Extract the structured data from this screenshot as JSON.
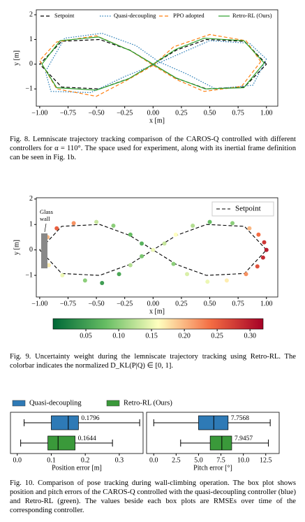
{
  "chart_data": [
    {
      "type": "line",
      "xlabel": "x [m]",
      "ylabel": "y [m]",
      "xlim": [
        -1.03,
        1.1
      ],
      "ylim": [
        -1.7,
        2.2
      ],
      "xticks": [
        {
          "value": -1,
          "label": "−1.00"
        },
        {
          "value": -0.75,
          "label": "−0.75"
        },
        {
          "value": -0.5,
          "label": "−0.50"
        },
        {
          "value": -0.25,
          "label": "−0.25"
        },
        {
          "value": 0,
          "label": "0.00"
        },
        {
          "value": 0.25,
          "label": "0.25"
        },
        {
          "value": 0.5,
          "label": "0.50"
        },
        {
          "value": 0.75,
          "label": "0.75"
        },
        {
          "value": 1,
          "label": "1.00"
        }
      ],
      "yticks": [
        {
          "value": -1,
          "label": "−1"
        },
        0,
        1,
        2
      ],
      "series": [
        {
          "name": "Setpoint",
          "color": "#000000",
          "linestyle": "dashed",
          "x": [
            1,
            0.806,
            0.471,
            0.207,
            0,
            -0.207,
            -0.471,
            -0.806,
            -1,
            -0.806,
            -0.471,
            -0.207,
            0,
            0.207,
            0.471,
            0.806,
            1
          ],
          "y": [
            0,
            0.926,
            1,
            0.572,
            0,
            -0.572,
            -1,
            -0.926,
            0,
            0.926,
            1,
            0.572,
            0,
            -0.572,
            -1,
            -0.926,
            0
          ]
        },
        {
          "name": "Quasi-decoupling",
          "color": "#1f77b4",
          "linestyle": "dotted",
          "x": [
            1.0,
            0.85,
            0.5,
            0.25,
            0.05,
            -0.25,
            -0.55,
            -0.9,
            -0.95,
            -0.78,
            -0.45,
            -0.15,
            0.05,
            0.3,
            0.55,
            0.88,
            1.0
          ],
          "y": [
            0.2,
            0.85,
            0.95,
            0.45,
            0.05,
            -0.5,
            -1.15,
            -1.1,
            -0.3,
            1.05,
            1.25,
            0.75,
            0.1,
            -0.4,
            -1.0,
            -0.85,
            0.2
          ]
        },
        {
          "name": "PPO adopted",
          "color": "#ff7f0e",
          "linestyle": "dashed",
          "x": [
            0.95,
            0.82,
            0.5,
            0.18,
            0,
            -0.25,
            -0.5,
            -0.85,
            -1.0,
            -0.85,
            -0.5,
            -0.2,
            0.02,
            0.22,
            0.45,
            0.78,
            0.95
          ],
          "y": [
            0.1,
            0.95,
            1.2,
            0.7,
            -0.05,
            -0.7,
            -1.3,
            -1.0,
            0.15,
            0.9,
            1.15,
            0.55,
            -0.1,
            -0.65,
            -1.1,
            -0.9,
            0.1
          ]
        },
        {
          "name": "Retro-RL (Ours)",
          "color": "#2ca02c",
          "linestyle": "solid",
          "x": [
            0.98,
            0.8,
            0.45,
            0.2,
            0,
            -0.22,
            -0.5,
            -0.85,
            -0.98,
            -0.82,
            -0.48,
            -0.2,
            0,
            0.2,
            0.46,
            0.8,
            0.98
          ],
          "y": [
            0.05,
            0.95,
            1.05,
            0.6,
            0,
            -0.6,
            -1.05,
            -0.95,
            0,
            0.95,
            1.1,
            0.55,
            0,
            -0.55,
            -1.0,
            -0.95,
            0.05
          ]
        }
      ]
    },
    {
      "type": "scatter",
      "xlabel": "x [m]",
      "ylabel": "y [m]",
      "xlim": [
        -1.03,
        1.1
      ],
      "ylim": [
        -1.85,
        2.05
      ],
      "xticks": [
        {
          "value": -1,
          "label": "−1.00"
        },
        {
          "value": -0.75,
          "label": "−0.75"
        },
        {
          "value": -0.5,
          "label": "−0.50"
        },
        {
          "value": -0.25,
          "label": "−0.25"
        },
        {
          "value": 0,
          "label": "0.00"
        },
        {
          "value": 0.25,
          "label": "0.25"
        },
        {
          "value": 0.5,
          "label": "0.50"
        },
        {
          "value": 0.75,
          "label": "0.75"
        },
        {
          "value": 1,
          "label": "1.00"
        }
      ],
      "yticks": [
        {
          "value": -1,
          "label": "−1"
        },
        0,
        1,
        2
      ],
      "annotation": "Glass wall",
      "setpoint": {
        "name": "Setpoint",
        "color": "#000000",
        "x": [
          1,
          0.806,
          0.471,
          0.207,
          0,
          -0.207,
          -0.471,
          -0.806,
          -1,
          -0.806,
          -0.471,
          -0.207,
          0,
          0.207,
          0.471,
          0.806,
          1
        ],
        "y": [
          0,
          0.926,
          1,
          0.572,
          0,
          -0.572,
          -1,
          -0.926,
          0,
          0.926,
          1,
          0.572,
          0,
          -0.572,
          -1,
          -0.926,
          0
        ]
      },
      "x": [
        1.0,
        0.98,
        0.97,
        0.93,
        0.92,
        0.85,
        0.82,
        0.7,
        0.65,
        0.5,
        0.48,
        0.35,
        0.3,
        0.2,
        0.18,
        0.1,
        0.0,
        -0.1,
        -0.2,
        -0.3,
        -0.45,
        -0.6,
        -0.8,
        -0.92,
        -0.97,
        -0.93,
        -0.85,
        -0.7,
        -0.5,
        -0.35,
        -0.2,
        -0.1
      ],
      "y": [
        0.0,
        0.3,
        -0.3,
        0.6,
        -0.65,
        0.85,
        -0.95,
        1.05,
        -1.2,
        1.1,
        -1.25,
        0.95,
        -0.95,
        0.6,
        -0.55,
        0.25,
        0.0,
        -0.25,
        -0.6,
        -0.95,
        -1.3,
        -1.2,
        -1.0,
        -0.6,
        0.0,
        0.5,
        0.85,
        1.05,
        1.1,
        0.95,
        0.6,
        0.25
      ],
      "values": [
        0.3,
        0.28,
        0.29,
        0.24,
        0.26,
        0.2,
        0.22,
        0.1,
        0.17,
        0.08,
        0.15,
        0.12,
        0.14,
        0.16,
        0.1,
        0.13,
        0.15,
        0.09,
        0.12,
        0.06,
        0.05,
        0.1,
        0.15,
        0.17,
        0.16,
        0.2,
        0.25,
        0.22,
        0.13,
        0.1,
        0.08,
        0.07
      ],
      "colormap": "RdYlGn_r",
      "clim": [
        0.0,
        0.32
      ],
      "cticks": [
        0.05,
        {
          "value": 0.1,
          "label": "0.10"
        },
        0.15,
        {
          "value": 0.2,
          "label": "0.20"
        },
        0.25,
        {
          "value": 0.3,
          "label": "0.30"
        }
      ]
    },
    {
      "type": "box",
      "legend": [
        {
          "name": "Quasi-decoupling",
          "color": "#2e7ab6"
        },
        {
          "name": "Retro-RL (Ours)",
          "color": "#3a993a"
        }
      ],
      "panels": [
        {
          "xlabel": "Position error [m]",
          "xlim": [
            -0.02,
            0.37
          ],
          "xticks": [
            {
              "value": 0,
              "label": "0.0"
            },
            0.1,
            0.2,
            0.3
          ],
          "boxes": [
            {
              "whislo": 0.02,
              "q1": 0.1,
              "med": 0.15,
              "q3": 0.18,
              "whishi": 0.36,
              "rmse": 0.1796
            },
            {
              "whislo": 0.01,
              "q1": 0.09,
              "med": 0.12,
              "q3": 0.17,
              "whishi": 0.28,
              "rmse": 0.1644
            }
          ]
        },
        {
          "xlabel": "Pitch error [°]",
          "xlim": [
            -0.8,
            14
          ],
          "xticks": [
            {
              "value": 0,
              "label": "0.0"
            },
            2.5,
            {
              "value": 5,
              "label": "5.0"
            },
            7.5,
            {
              "value": 10,
              "label": "10.0"
            },
            12.5
          ],
          "boxes": [
            {
              "whislo": 0,
              "q1": 5,
              "med": 6.7,
              "q3": 8.3,
              "whishi": 13,
              "rmse": 7.7568
            },
            {
              "whislo": 3,
              "q1": 6.3,
              "med": 7.6,
              "q3": 8.7,
              "whishi": 12.8,
              "rmse": 7.9457
            }
          ]
        }
      ]
    }
  ],
  "captions": [
    "Fig. 8. Lemniscate trajectory tracking comparison of the CAROS-Q controlled with different controllers for α = 110°. The space used for experiment, along with its inertial frame definition can be seen in Fig. 1b.",
    "Fig. 9. Uncertainty weight during the lemniscate trajectory tracking using Retro-RL. The colorbar indicates the normalized D_KL(P|Q) ∈ [0, 1].",
    "Fig. 10. Comparison of pose tracking during wall-climbing operation. The box plot shows position and pitch errors of the CAROS-Q controlled with the quasi-decoupling controller (blue) and Retro-RL (green). The values beside each box plots are RMSEs over time of the corresponding controller."
  ]
}
